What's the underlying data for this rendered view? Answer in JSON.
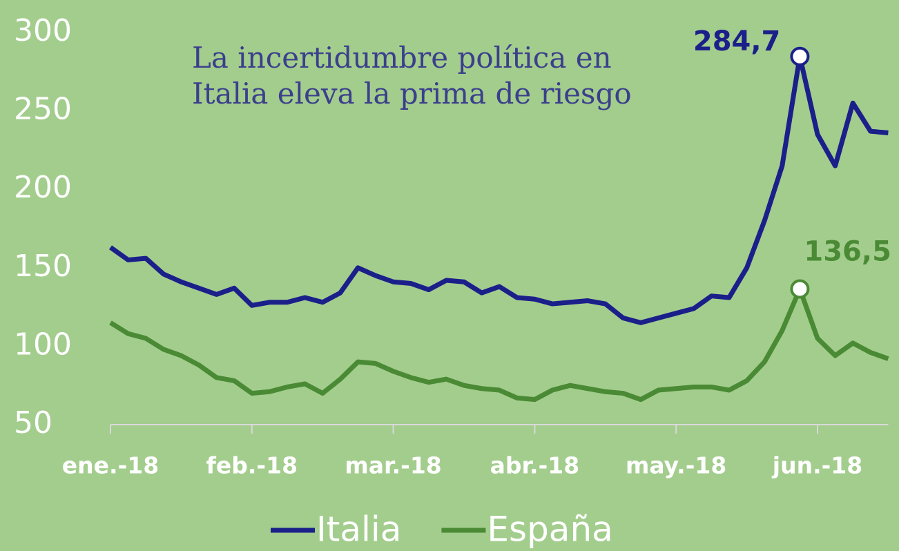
{
  "chart_data": {
    "type": "line",
    "title": "La incertidumbre política en Italia eleva la prima de riesgo",
    "categories": [
      "ene.-18",
      null,
      null,
      null,
      null,
      null,
      null,
      null,
      "feb.-18",
      null,
      null,
      null,
      null,
      null,
      null,
      null,
      "mar.-18",
      null,
      null,
      null,
      null,
      null,
      null,
      null,
      "abr.-18",
      null,
      null,
      null,
      null,
      null,
      null,
      null,
      "may.-18",
      null,
      null,
      null,
      null,
      null,
      null,
      null,
      "jun.-18",
      null,
      null,
      null,
      null
    ],
    "series": [
      {
        "name": "Italia",
        "color": "#1b1f8a",
        "values": [
          163,
          155,
          156,
          146,
          141,
          137,
          133,
          137,
          126,
          128,
          128,
          131,
          128,
          134,
          150,
          145,
          141,
          140,
          136,
          142,
          141,
          134,
          138,
          131,
          130,
          127,
          128,
          129,
          127,
          118,
          115,
          118,
          121,
          124,
          132,
          131,
          150,
          180,
          215,
          284.7,
          235,
          215,
          255,
          237,
          236
        ],
        "value_labels": [
          null,
          null,
          null,
          null,
          null,
          null,
          null,
          null,
          null,
          null,
          null,
          null,
          null,
          null,
          null,
          null,
          null,
          null,
          null,
          null,
          null,
          null,
          null,
          null,
          null,
          null,
          null,
          null,
          null,
          null,
          null,
          null,
          null,
          null,
          null,
          null,
          null,
          null,
          null,
          "284,7",
          null,
          null,
          null,
          null,
          null
        ]
      },
      {
        "name": "España",
        "color": "#4a8a35",
        "values": [
          115,
          108,
          105,
          98,
          94,
          88,
          80,
          78,
          70,
          71,
          74,
          76,
          70,
          79,
          90,
          89,
          84,
          80,
          77,
          79,
          75,
          73,
          72,
          67,
          66,
          72,
          75,
          73,
          71,
          70,
          66,
          72,
          73,
          74,
          74,
          72,
          78,
          90,
          110,
          136.5,
          105,
          94,
          102,
          96,
          92
        ],
        "value_labels": [
          null,
          null,
          null,
          null,
          null,
          null,
          null,
          null,
          null,
          null,
          null,
          null,
          null,
          null,
          null,
          null,
          null,
          null,
          null,
          null,
          null,
          null,
          null,
          null,
          null,
          null,
          null,
          null,
          null,
          null,
          null,
          null,
          null,
          null,
          null,
          null,
          null,
          null,
          null,
          "136,5",
          null,
          null,
          null,
          null,
          null
        ]
      }
    ],
    "ylim": [
      50,
      300
    ],
    "yticks": [
      50,
      100,
      150,
      200,
      250,
      300
    ],
    "grid": false,
    "legend": "bottom"
  }
}
